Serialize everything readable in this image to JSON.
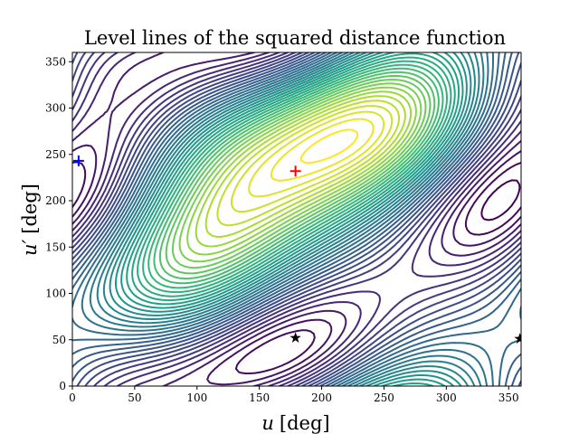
{
  "chart_data": {
    "type": "contour",
    "title": "Level lines of the squared distance function",
    "xlabel_var": "u",
    "xlabel_unit": "[deg]",
    "ylabel_var": "u′",
    "ylabel_unit": "[deg]",
    "xlim": [
      0,
      360
    ],
    "ylim": [
      0,
      360
    ],
    "xticks": [
      0,
      50,
      100,
      150,
      200,
      250,
      300,
      350
    ],
    "yticks": [
      0,
      50,
      100,
      150,
      200,
      250,
      300,
      350
    ],
    "colormap": "viridis",
    "grid": false,
    "contour_levels": 40,
    "markers": [
      {
        "label": "minimum",
        "shape": "plus",
        "color": "#ff0000",
        "x": 179,
        "y": 232
      },
      {
        "label": "maximum",
        "shape": "plus",
        "color": "#0000ff",
        "x": 5,
        "y": 243
      },
      {
        "label": "saddle",
        "shape": "star",
        "color": "#000000",
        "x": 179,
        "y": 52
      },
      {
        "label": "saddle",
        "shape": "star",
        "color": "#000000",
        "x": 359,
        "y": 51
      }
    ]
  }
}
